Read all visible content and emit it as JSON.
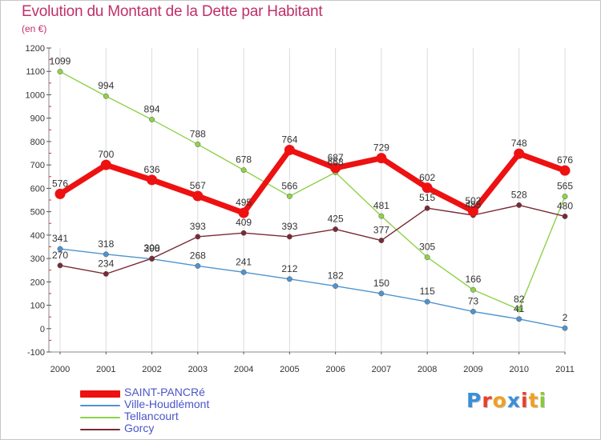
{
  "header": {
    "title": "Evolution du Montant de la Dette par Habitant",
    "subtitle": "(en €)"
  },
  "logo": {
    "text": "Proxiti",
    "letters": [
      {
        "ch": "P",
        "color": "#3a8fd8"
      },
      {
        "ch": "r",
        "color": "#e8402a"
      },
      {
        "ch": "o",
        "color": "#f0a020"
      },
      {
        "ch": "x",
        "color": "#3a8fd8"
      },
      {
        "ch": "i",
        "color": "#e8402a"
      },
      {
        "ch": "t",
        "color": "#f0a020"
      },
      {
        "ch": "i",
        "color": "#8cc83c"
      }
    ]
  },
  "chart_data": {
    "type": "line",
    "title": "Evolution du Montant de la Dette par Habitant",
    "subtitle": "(en €)",
    "x": [
      "2000",
      "2001",
      "2002",
      "2003",
      "2004",
      "2005",
      "2006",
      "2007",
      "2008",
      "2009",
      "2010",
      "2011"
    ],
    "ylim": [
      -100,
      1200
    ],
    "yticks": [
      "-100",
      "0",
      "100",
      "200",
      "300",
      "400",
      "500",
      "600",
      "700",
      "800",
      "900",
      "1000",
      "1100",
      "1200"
    ],
    "grid": "vertical",
    "legend_position": "bottom-left",
    "series": [
      {
        "name": "SAINT-PANCRé",
        "color": "#ee1111",
        "thick": true,
        "values": [
          576,
          700,
          636,
          567,
          495,
          764,
          687,
          729,
          602,
          502,
          748,
          676
        ]
      },
      {
        "name": "Ville-Houdlémont",
        "color": "#4f94cf",
        "thick": false,
        "values": [
          341,
          318,
          298,
          268,
          241,
          212,
          182,
          150,
          115,
          73,
          41,
          2
        ]
      },
      {
        "name": "Tellancourt",
        "color": "#8fd24a",
        "thick": false,
        "values": [
          1099,
          994,
          894,
          788,
          678,
          566,
          668,
          481,
          305,
          166,
          82,
          565
        ]
      },
      {
        "name": "Gorcy",
        "color": "#7a2a35",
        "thick": false,
        "values": [
          270,
          234,
          300,
          393,
          409,
          393,
          425,
          377,
          515,
          485,
          528,
          480
        ]
      }
    ]
  }
}
